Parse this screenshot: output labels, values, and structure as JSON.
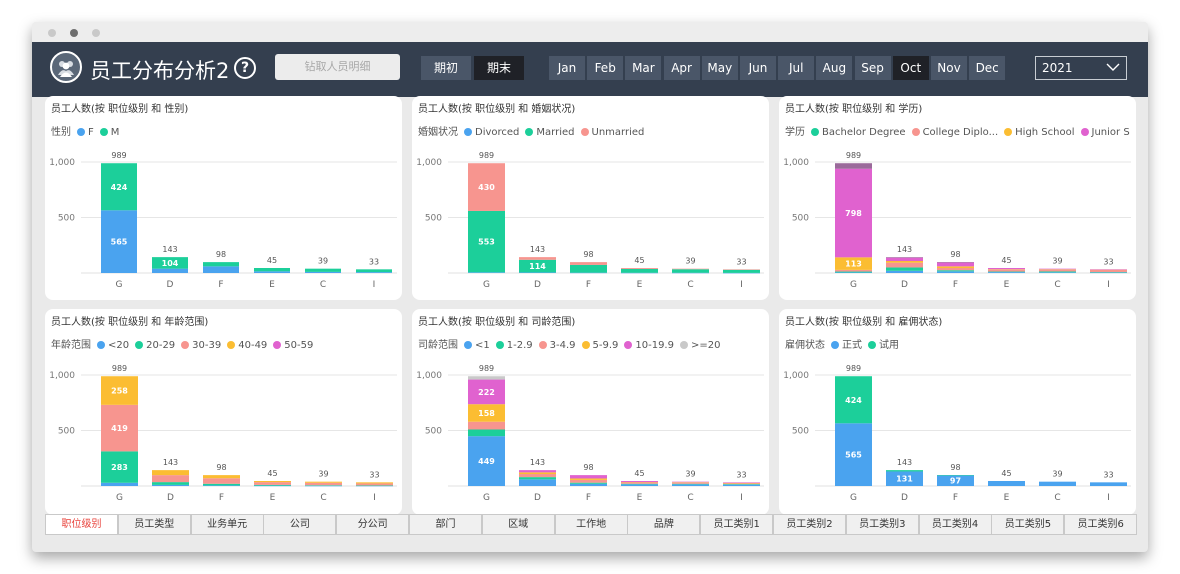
{
  "header": {
    "title": "员工分布分析2",
    "help_label": "?",
    "drill_label": "钻取人员明细",
    "period_buttons": [
      "期初",
      "期末"
    ],
    "active_period": "期末",
    "months": [
      "Jan",
      "Feb",
      "Mar",
      "Apr",
      "May",
      "Jun",
      "Jul",
      "Aug",
      "Sep",
      "Oct",
      "Nov",
      "Dec"
    ],
    "active_month": "Oct",
    "year_value": "2021"
  },
  "colors": {
    "header_bg": "#343f4f",
    "blue": "#4aa3ef",
    "green": "#1ccf9a",
    "salmon": "#f7958f",
    "yellow": "#fbbd32",
    "magenta": "#e062cf",
    "grey": "#c9c9c9",
    "purple": "#9a6a9a",
    "active_tab_text": "#e8413a"
  },
  "tabs": [
    "职位级别",
    "员工类型",
    "业务单元",
    "公司",
    "分公司",
    "部门",
    "区域",
    "工作地",
    "品牌",
    "员工类别1",
    "员工类别2",
    "员工类别3",
    "员工类别4",
    "员工类别5",
    "员工类别6"
  ],
  "active_tab": "职位级别",
  "chart_data": [
    {
      "type": "bar",
      "stacked": true,
      "title": "员工人数(按 职位级别 和 性别)",
      "legend_title": "性别",
      "categories": [
        "G",
        "D",
        "F",
        "E",
        "C",
        "I"
      ],
      "totals": [
        989,
        143,
        98,
        45,
        39,
        33
      ],
      "yticks": [
        "1,000",
        "500"
      ],
      "ylim": [
        0,
        1000
      ],
      "series": [
        {
          "name": "F",
          "color": "#4aa3ef",
          "values": [
            565,
            39,
            60,
            15,
            10,
            8
          ]
        },
        {
          "name": "M",
          "color": "#1ccf9a",
          "values": [
            424,
            104,
            38,
            30,
            29,
            25
          ]
        }
      ],
      "data_labels": [
        {
          "series": 0,
          "index": 0,
          "text": "565"
        },
        {
          "series": 1,
          "index": 0,
          "text": "424"
        },
        {
          "series": 1,
          "index": 1,
          "text": "104"
        }
      ]
    },
    {
      "type": "bar",
      "stacked": true,
      "title": "员工人数(按 职位级别 和 婚姻状况)",
      "legend_title": "婚姻状况",
      "categories": [
        "G",
        "D",
        "F",
        "E",
        "C",
        "I"
      ],
      "totals": [
        989,
        143,
        98,
        45,
        39,
        33
      ],
      "yticks": [
        "1,000",
        "500"
      ],
      "ylim": [
        0,
        1000
      ],
      "series": [
        {
          "name": "Divorced",
          "color": "#4aa3ef",
          "values": [
            6,
            5,
            3,
            2,
            2,
            1
          ]
        },
        {
          "name": "Married",
          "color": "#1ccf9a",
          "values": [
            553,
            114,
            70,
            35,
            32,
            28
          ]
        },
        {
          "name": "Unmarried",
          "color": "#f7958f",
          "values": [
            430,
            24,
            25,
            8,
            5,
            4
          ]
        }
      ],
      "data_labels": [
        {
          "series": 1,
          "index": 0,
          "text": "553"
        },
        {
          "series": 2,
          "index": 0,
          "text": "430"
        },
        {
          "series": 1,
          "index": 1,
          "text": "114"
        }
      ]
    },
    {
      "type": "bar",
      "stacked": true,
      "title": "员工人数(按 职位级别 和 学历)",
      "legend_title": "学历",
      "categories": [
        "G",
        "D",
        "F",
        "E",
        "C",
        "I"
      ],
      "totals": [
        989,
        143,
        98,
        45,
        39,
        33
      ],
      "yticks": [
        "1,000",
        "500"
      ],
      "ylim": [
        0,
        1000
      ],
      "series": [
        {
          "name": "",
          "color": "#4aa3ef",
          "values": [
            5,
            20,
            15,
            8,
            6,
            4
          ]
        },
        {
          "name": "Bachelor Degree",
          "color": "#1ccf9a",
          "values": [
            8,
            30,
            10,
            5,
            8,
            4
          ]
        },
        {
          "name": "College Diplo...",
          "color": "#f7958f",
          "values": [
            15,
            43,
            20,
            15,
            15,
            20
          ]
        },
        {
          "name": "High School",
          "color": "#fbbd32",
          "values": [
            113,
            15,
            15,
            5,
            4,
            3
          ]
        },
        {
          "name": "Junior Scho",
          "color": "#e062cf",
          "values": [
            798,
            30,
            35,
            12,
            6,
            2
          ]
        },
        {
          "name": "",
          "color": "#9a6a9a",
          "values": [
            50,
            5,
            3,
            0,
            0,
            0
          ]
        }
      ],
      "data_labels": [
        {
          "series": 3,
          "index": 0,
          "text": "113"
        },
        {
          "series": 4,
          "index": 0,
          "text": "798"
        }
      ]
    },
    {
      "type": "bar",
      "stacked": true,
      "title": "员工人数(按 职位级别 和 年龄范围)",
      "legend_title": "年龄范围",
      "categories": [
        "G",
        "D",
        "F",
        "E",
        "C",
        "I"
      ],
      "totals": [
        989,
        143,
        98,
        45,
        39,
        33
      ],
      "yticks": [
        "1,000",
        "500"
      ],
      "ylim": [
        0,
        1000
      ],
      "series": [
        {
          "name": "<20",
          "color": "#4aa3ef",
          "values": [
            29,
            10,
            5,
            3,
            2,
            2
          ]
        },
        {
          "name": "20-29",
          "color": "#1ccf9a",
          "values": [
            283,
            25,
            15,
            7,
            5,
            3
          ]
        },
        {
          "name": "30-39",
          "color": "#f7958f",
          "values": [
            419,
            63,
            50,
            25,
            22,
            18
          ]
        },
        {
          "name": "40-49",
          "color": "#fbbd32",
          "values": [
            258,
            45,
            28,
            10,
            10,
            10
          ]
        },
        {
          "name": "50-59",
          "color": "#e062cf",
          "values": [
            0,
            0,
            0,
            0,
            0,
            0
          ]
        }
      ],
      "data_labels": [
        {
          "series": 1,
          "index": 0,
          "text": "283"
        },
        {
          "series": 2,
          "index": 0,
          "text": "419"
        },
        {
          "series": 3,
          "index": 0,
          "text": "258"
        }
      ]
    },
    {
      "type": "bar",
      "stacked": true,
      "title": "员工人数(按 职位级别 和 司龄范围)",
      "legend_title": "司龄范围",
      "categories": [
        "G",
        "D",
        "F",
        "E",
        "C",
        "I"
      ],
      "totals": [
        989,
        143,
        98,
        45,
        39,
        33
      ],
      "yticks": [
        "1,000",
        "500"
      ],
      "ylim": [
        0,
        1000
      ],
      "series": [
        {
          "name": "<1",
          "color": "#4aa3ef",
          "values": [
            449,
            60,
            20,
            15,
            15,
            12
          ]
        },
        {
          "name": "1-2.9",
          "color": "#1ccf9a",
          "values": [
            60,
            20,
            10,
            5,
            5,
            5
          ]
        },
        {
          "name": "3-4.9",
          "color": "#f7958f",
          "values": [
            70,
            28,
            25,
            12,
            10,
            8
          ]
        },
        {
          "name": "5-9.9",
          "color": "#fbbd32",
          "values": [
            158,
            15,
            13,
            3,
            4,
            3
          ]
        },
        {
          "name": "10-19.9",
          "color": "#e062cf",
          "values": [
            222,
            20,
            30,
            10,
            5,
            5
          ]
        },
        {
          "name": ">=20",
          "color": "#c9c9c9",
          "values": [
            30,
            0,
            0,
            0,
            0,
            0
          ]
        }
      ],
      "data_labels": [
        {
          "series": 0,
          "index": 0,
          "text": "449"
        },
        {
          "series": 3,
          "index": 0,
          "text": "158"
        },
        {
          "series": 4,
          "index": 0,
          "text": "222"
        }
      ]
    },
    {
      "type": "bar",
      "stacked": true,
      "title": "员工人数(按 职位级别 和 雇佣状态)",
      "legend_title": "雇佣状态",
      "categories": [
        "G",
        "D",
        "F",
        "E",
        "C",
        "I"
      ],
      "totals": [
        989,
        143,
        98,
        45,
        39,
        33
      ],
      "yticks": [
        "1,000",
        "500"
      ],
      "ylim": [
        0,
        1000
      ],
      "series": [
        {
          "name": "正式",
          "color": "#4aa3ef",
          "values": [
            565,
            131,
            97,
            45,
            39,
            33
          ]
        },
        {
          "name": "试用",
          "color": "#1ccf9a",
          "values": [
            424,
            12,
            1,
            0,
            0,
            0
          ]
        }
      ],
      "data_labels": [
        {
          "series": 0,
          "index": 0,
          "text": "565"
        },
        {
          "series": 1,
          "index": 0,
          "text": "424"
        },
        {
          "series": 0,
          "index": 1,
          "text": "131"
        },
        {
          "series": 0,
          "index": 2,
          "text": "97"
        }
      ]
    }
  ]
}
